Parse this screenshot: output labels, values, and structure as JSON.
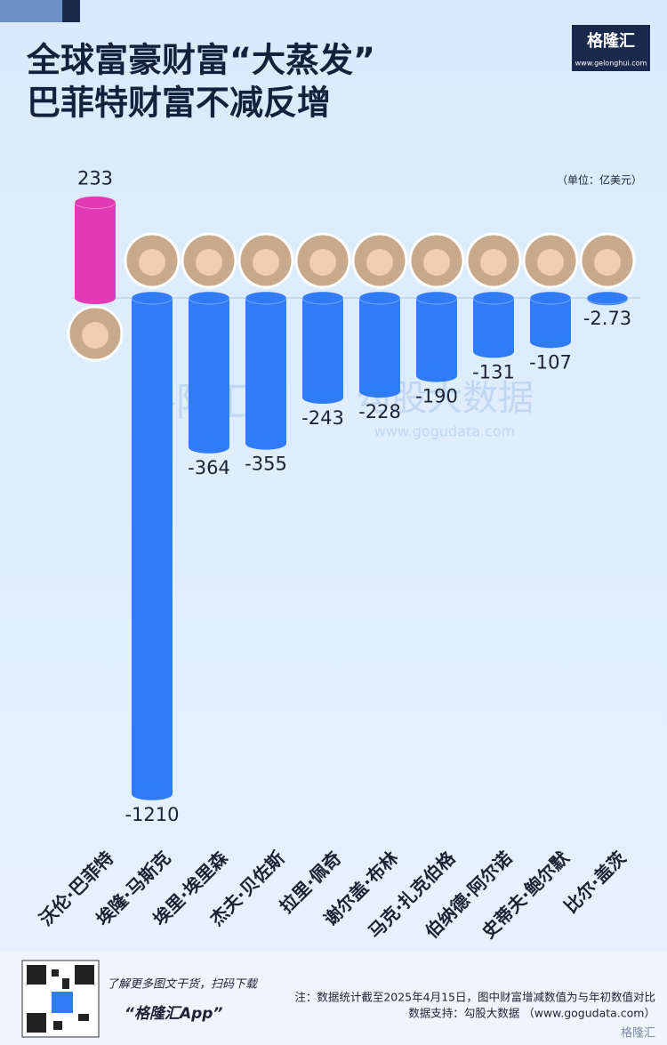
{
  "title_lines": [
    "全球富豪财富“大蒸发”",
    "巴菲特财富不减反增"
  ],
  "logo": {
    "name": "格隆汇",
    "url": "www.gelonghui.com"
  },
  "unit_note": "（单位：亿美元）",
  "watermark": {
    "left": "格隆汇",
    "right": "勾股大数据",
    "url": "www.gogudata.com"
  },
  "chart_data": {
    "type": "bar",
    "categories": [
      "沃伦·巴菲特",
      "埃隆·马斯克",
      "埃里·埃里森",
      "杰夫·贝佐斯",
      "拉里·佩奇",
      "谢尔盖·布林",
      "马克·扎克伯格",
      "伯纳德·阿尔诺",
      "史蒂夫·鲍尔默",
      "比尔·盖茨"
    ],
    "values": [
      233,
      -1210,
      -364,
      -355,
      -243,
      -228,
      -190,
      -131,
      -107,
      -2.73
    ],
    "colors": [
      "#e03ab6",
      "#2f7cf6",
      "#2f7cf6",
      "#2f7cf6",
      "#2f7cf6",
      "#2f7cf6",
      "#2f7cf6",
      "#2f7cf6",
      "#2f7cf6",
      "#2f7cf6"
    ]
  },
  "footer": {
    "promo": "了解更多图文干货，扫码下载",
    "app": "“格隆汇App”",
    "note": "注：数据统计截至2025年4月15日，图中财富增减数值为与年初数值对比",
    "source": "数据支持：勾股大数据 （www.gogudata.com）",
    "brand": "格隆汇"
  }
}
